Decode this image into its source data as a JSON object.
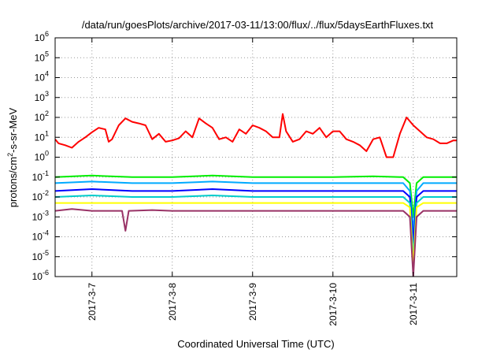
{
  "chart_data": {
    "type": "line",
    "title": "/data/run/goesPlots/archive/2017-03-11/13:00/flux/../flux/5daysEarthFluxes.txt",
    "xlabel": "Coordinated Universal Time (UTC)",
    "ylabel_parts": {
      "pre": "protons/cm",
      "sup": "2",
      "post": "-s-sr-MeV"
    },
    "yscale": "log",
    "ylim": [
      1e-06,
      1000000.0
    ],
    "y_ticks": [
      {
        "base": "10",
        "exp": "-6",
        "value": 1e-06
      },
      {
        "base": "10",
        "exp": "-5",
        "value": 1e-05
      },
      {
        "base": "10",
        "exp": "-4",
        "value": 0.0001
      },
      {
        "base": "10",
        "exp": "-3",
        "value": 0.001
      },
      {
        "base": "10",
        "exp": "-2",
        "value": 0.01
      },
      {
        "base": "10",
        "exp": "-1",
        "value": 0.1
      },
      {
        "base": "10",
        "exp": "0",
        "value": 1
      },
      {
        "base": "10",
        "exp": "1",
        "value": 10
      },
      {
        "base": "10",
        "exp": "2",
        "value": 100
      },
      {
        "base": "10",
        "exp": "3",
        "value": 1000
      },
      {
        "base": "10",
        "exp": "4",
        "value": 10000
      },
      {
        "base": "10",
        "exp": "5",
        "value": 100000
      },
      {
        "base": "10",
        "exp": "6",
        "value": 1000000
      }
    ],
    "xlim": [
      "2017-03-06 13:00",
      "2017-03-11 13:00"
    ],
    "x_ticks": [
      {
        "label": "2017-3-7",
        "value": "2017-03-07 00:00"
      },
      {
        "label": "2017-3-8",
        "value": "2017-03-08 00:00"
      },
      {
        "label": "2017-3-9",
        "value": "2017-03-09 00:00"
      },
      {
        "label": "2017-3-10",
        "value": "2017-03-10 00:00"
      },
      {
        "label": "2017-3-11",
        "value": "2017-03-11 00:00"
      }
    ],
    "grid": true,
    "series": [
      {
        "color": "#ff0000",
        "x": [
          "2017-03-06 13:00",
          "2017-03-06 14:00",
          "2017-03-06 16:00",
          "2017-03-06 18:00",
          "2017-03-06 20:00",
          "2017-03-06 22:00",
          "2017-03-07 00:00",
          "2017-03-07 02:00",
          "2017-03-07 04:00",
          "2017-03-07 05:00",
          "2017-03-07 06:00",
          "2017-03-07 08:00",
          "2017-03-07 10:00",
          "2017-03-07 12:00",
          "2017-03-07 14:00",
          "2017-03-07 16:00",
          "2017-03-07 18:00",
          "2017-03-07 20:00",
          "2017-03-07 22:00",
          "2017-03-08 00:00",
          "2017-03-08 02:00",
          "2017-03-08 04:00",
          "2017-03-08 06:00",
          "2017-03-08 08:00",
          "2017-03-08 10:00",
          "2017-03-08 12:00",
          "2017-03-08 14:00",
          "2017-03-08 16:00",
          "2017-03-08 18:00",
          "2017-03-08 20:00",
          "2017-03-08 22:00",
          "2017-03-09 00:00",
          "2017-03-09 02:00",
          "2017-03-09 04:00",
          "2017-03-09 06:00",
          "2017-03-09 08:00",
          "2017-03-09 09:00",
          "2017-03-09 10:00",
          "2017-03-09 12:00",
          "2017-03-09 14:00",
          "2017-03-09 16:00",
          "2017-03-09 18:00",
          "2017-03-09 20:00",
          "2017-03-09 22:00",
          "2017-03-10 00:00",
          "2017-03-10 02:00",
          "2017-03-10 04:00",
          "2017-03-10 06:00",
          "2017-03-10 08:00",
          "2017-03-10 10:00",
          "2017-03-10 12:00",
          "2017-03-10 14:00",
          "2017-03-10 16:00",
          "2017-03-10 18:00",
          "2017-03-10 20:00",
          "2017-03-10 22:00",
          "2017-03-11 00:00",
          "2017-03-11 02:00",
          "2017-03-11 04:00",
          "2017-03-11 06:00",
          "2017-03-11 08:00",
          "2017-03-11 10:00",
          "2017-03-11 12:00",
          "2017-03-11 13:00"
        ],
        "y": [
          8,
          5,
          4,
          3,
          6,
          10,
          18,
          30,
          25,
          6,
          8,
          40,
          90,
          60,
          50,
          40,
          8,
          15,
          6,
          7,
          9,
          20,
          10,
          90,
          50,
          30,
          8,
          10,
          6,
          25,
          15,
          40,
          30,
          20,
          10,
          10,
          150,
          20,
          6,
          8,
          20,
          15,
          30,
          10,
          20,
          20,
          8,
          6,
          4,
          2,
          8,
          10,
          1,
          1,
          15,
          100,
          40,
          20,
          10,
          8,
          5,
          5,
          7,
          7
        ]
      },
      {
        "color": "#00ee00",
        "x": [
          "2017-03-06 13:00",
          "2017-03-07 00:00",
          "2017-03-07 12:00",
          "2017-03-08 00:00",
          "2017-03-08 12:00",
          "2017-03-09 00:00",
          "2017-03-09 12:00",
          "2017-03-10 00:00",
          "2017-03-10 12:00",
          "2017-03-10 21:00",
          "2017-03-10 23:00",
          "2017-03-11 00:00",
          "2017-03-11 01:00",
          "2017-03-11 03:00",
          "2017-03-11 13:00"
        ],
        "y": [
          0.1,
          0.12,
          0.1,
          0.1,
          0.12,
          0.1,
          0.1,
          0.1,
          0.11,
          0.1,
          0.05,
          0.001,
          0.05,
          0.1,
          0.1
        ]
      },
      {
        "color": "#00aaff",
        "x": [
          "2017-03-06 13:00",
          "2017-03-07 00:00",
          "2017-03-07 12:00",
          "2017-03-08 00:00",
          "2017-03-08 12:00",
          "2017-03-09 00:00",
          "2017-03-09 12:00",
          "2017-03-10 00:00",
          "2017-03-10 12:00",
          "2017-03-10 21:00",
          "2017-03-10 23:00",
          "2017-03-11 00:00",
          "2017-03-11 01:00",
          "2017-03-11 03:00",
          "2017-03-11 13:00"
        ],
        "y": [
          0.05,
          0.06,
          0.05,
          0.05,
          0.06,
          0.05,
          0.05,
          0.05,
          0.05,
          0.05,
          0.02,
          0.0002,
          0.02,
          0.05,
          0.05
        ]
      },
      {
        "color": "#0000ff",
        "x": [
          "2017-03-06 13:00",
          "2017-03-07 00:00",
          "2017-03-07 12:00",
          "2017-03-08 00:00",
          "2017-03-08 12:00",
          "2017-03-09 00:00",
          "2017-03-09 12:00",
          "2017-03-10 00:00",
          "2017-03-10 12:00",
          "2017-03-10 21:00",
          "2017-03-10 23:00",
          "2017-03-11 00:00",
          "2017-03-11 01:00",
          "2017-03-11 03:00",
          "2017-03-11 13:00"
        ],
        "y": [
          0.02,
          0.025,
          0.02,
          0.02,
          0.025,
          0.02,
          0.02,
          0.02,
          0.02,
          0.02,
          0.01,
          5e-05,
          0.01,
          0.02,
          0.02
        ]
      },
      {
        "color": "#00cccc",
        "x": [
          "2017-03-06 13:00",
          "2017-03-07 00:00",
          "2017-03-07 12:00",
          "2017-03-08 00:00",
          "2017-03-08 12:00",
          "2017-03-09 00:00",
          "2017-03-09 12:00",
          "2017-03-10 00:00",
          "2017-03-10 12:00",
          "2017-03-10 21:00",
          "2017-03-10 23:00",
          "2017-03-11 00:00",
          "2017-03-11 01:00",
          "2017-03-11 03:00",
          "2017-03-11 13:00"
        ],
        "y": [
          0.01,
          0.012,
          0.01,
          0.01,
          0.012,
          0.01,
          0.01,
          0.01,
          0.01,
          0.01,
          0.005,
          1e-05,
          0.005,
          0.01,
          0.01
        ]
      },
      {
        "color": "#ffff00",
        "x": [
          "2017-03-06 13:00",
          "2017-03-07 00:00",
          "2017-03-07 12:00",
          "2017-03-08 00:00",
          "2017-03-08 12:00",
          "2017-03-09 00:00",
          "2017-03-09 12:00",
          "2017-03-10 00:00",
          "2017-03-10 12:00",
          "2017-03-10 21:00",
          "2017-03-10 23:00",
          "2017-03-11 00:00",
          "2017-03-11 01:00",
          "2017-03-11 03:00",
          "2017-03-11 13:00"
        ],
        "y": [
          0.005,
          0.005,
          0.005,
          0.005,
          0.005,
          0.005,
          0.005,
          0.005,
          0.005,
          0.005,
          0.003,
          3e-06,
          0.003,
          0.005,
          0.005
        ]
      },
      {
        "color": "#993366",
        "x": [
          "2017-03-06 13:00",
          "2017-03-06 18:00",
          "2017-03-07 00:00",
          "2017-03-07 09:00",
          "2017-03-07 10:00",
          "2017-03-07 11:00",
          "2017-03-07 18:00",
          "2017-03-08 00:00",
          "2017-03-08 12:00",
          "2017-03-09 00:00",
          "2017-03-09 12:00",
          "2017-03-10 00:00",
          "2017-03-10 12:00",
          "2017-03-10 21:00",
          "2017-03-10 23:00",
          "2017-03-11 00:00",
          "2017-03-11 01:00",
          "2017-03-11 03:00",
          "2017-03-11 13:00"
        ],
        "y": [
          0.002,
          0.0025,
          0.002,
          0.002,
          0.0002,
          0.002,
          0.0022,
          0.002,
          0.002,
          0.002,
          0.002,
          0.002,
          0.002,
          0.002,
          0.001,
          1e-06,
          0.001,
          0.002,
          0.002
        ]
      }
    ]
  }
}
